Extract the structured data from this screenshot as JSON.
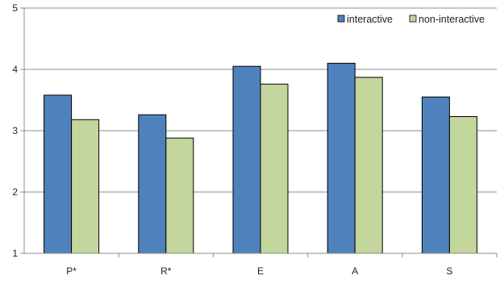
{
  "chart_data": {
    "type": "bar",
    "categories": [
      "P*",
      "R*",
      "E",
      "A",
      "S"
    ],
    "series": [
      {
        "name": "interactive",
        "values": [
          3.58,
          3.26,
          4.05,
          4.1,
          3.55
        ],
        "color": "#4f81bd"
      },
      {
        "name": "non-interactive",
        "values": [
          3.18,
          2.88,
          3.76,
          3.87,
          3.23
        ],
        "color": "#c3d69b"
      }
    ],
    "yticks": [
      1,
      2,
      3,
      4,
      5
    ],
    "ylim": [
      1,
      5
    ],
    "grid": true,
    "legend": "top-right",
    "title": "",
    "xlabel": "",
    "ylabel": ""
  }
}
